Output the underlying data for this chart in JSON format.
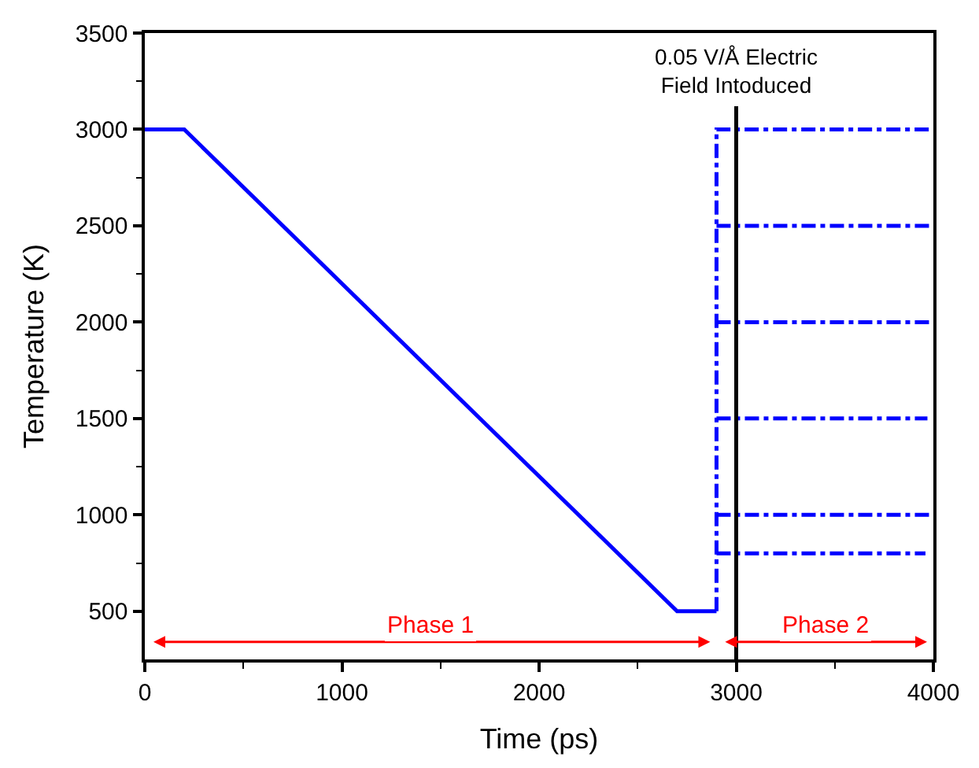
{
  "chart_data": {
    "type": "line",
    "xlabel": "Time (ps)",
    "ylabel": "Temperature (K)",
    "xlim": [
      0,
      4000
    ],
    "xticks": [
      0,
      1000,
      2000,
      3000,
      4000
    ],
    "ylim": [
      250,
      3500
    ],
    "yticks": [
      500,
      1000,
      1500,
      2000,
      2500,
      3000,
      3500
    ],
    "marker": "none",
    "series": [
      {
        "color": "#0000ff",
        "line_style": "solid",
        "x": [
          0,
          200,
          2700,
          2900
        ],
        "values": [
          3000,
          3000,
          500,
          500
        ]
      },
      {
        "color": "#0000ff",
        "line_style": "dashdot",
        "x": [
          2900,
          2900,
          4000
        ],
        "values": [
          500,
          3000,
          3000
        ]
      },
      {
        "color": "#0000ff",
        "line_style": "dashdot",
        "x": [
          2900,
          4000
        ],
        "values": [
          2500,
          2500
        ]
      },
      {
        "color": "#0000ff",
        "line_style": "dashdot",
        "x": [
          2900,
          4000
        ],
        "values": [
          2000,
          2000
        ]
      },
      {
        "color": "#0000ff",
        "line_style": "dashdot",
        "x": [
          2900,
          3970
        ],
        "values": [
          1500,
          1500
        ]
      },
      {
        "color": "#0000ff",
        "line_style": "dashdot",
        "x": [
          2900,
          4000
        ],
        "values": [
          1000,
          1000
        ]
      },
      {
        "color": "#0000ff",
        "line_style": "dashdot",
        "x": [
          2900,
          3960
        ],
        "values": [
          800,
          800
        ]
      },
      {
        "color": "#000000",
        "line_style": "solid",
        "x": [
          3000,
          3000
        ],
        "values": [
          250,
          3120
        ]
      }
    ],
    "annotations": [
      "0.05 V/Å Electric\nField Intoduced",
      "Phase 1",
      "Phase 2"
    ]
  }
}
